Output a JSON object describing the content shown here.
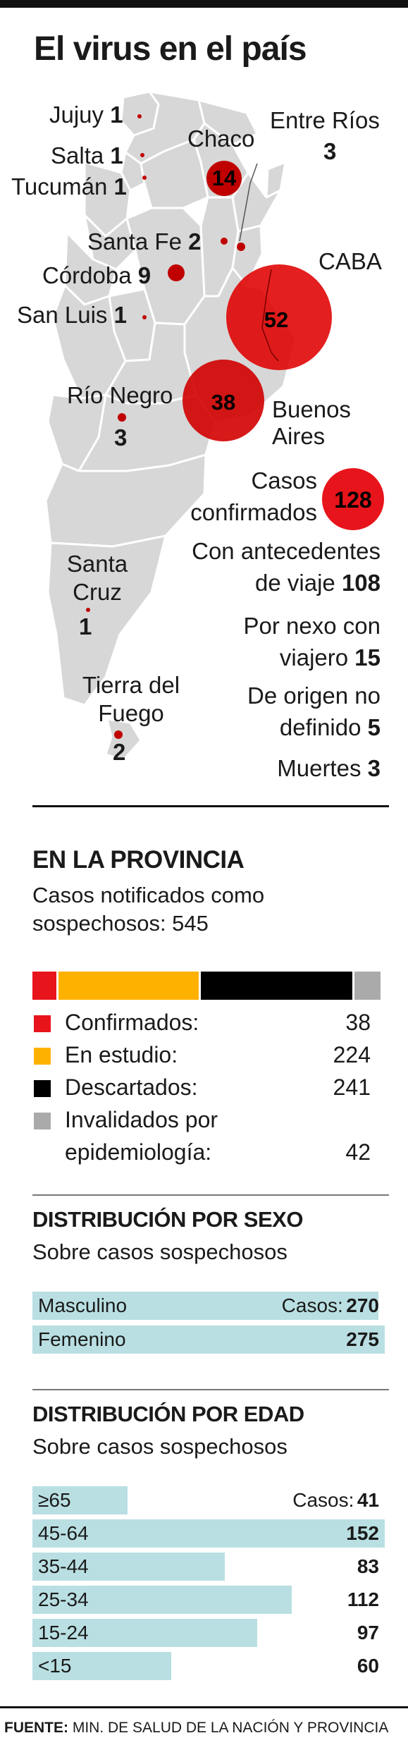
{
  "title": "El virus en el país",
  "map": {
    "provinces": [
      {
        "name": "Jujuy",
        "cases": "1"
      },
      {
        "name": "Salta",
        "cases": "1"
      },
      {
        "name": "Tucumán",
        "cases": "1"
      },
      {
        "name": "Chaco",
        "cases": "14"
      },
      {
        "name": "Entre Ríos",
        "cases": "3"
      },
      {
        "name": "Santa Fe",
        "cases": "2"
      },
      {
        "name": "Córdoba",
        "cases": "9"
      },
      {
        "name": "CABA",
        "cases": "52"
      },
      {
        "name": "San Luis",
        "cases": "1"
      },
      {
        "name": "Río Negro",
        "cases": "3"
      },
      {
        "name": "Buenos Aires",
        "cases": "38"
      },
      {
        "name": "Santa Cruz",
        "cases": "1"
      },
      {
        "name": "Tierra del Fuego",
        "cases": "2"
      }
    ],
    "colors": {
      "land": "#d7d7d7",
      "border": "#ffffff",
      "bubble": "#e00000",
      "bubble_dark": "#b80000",
      "dot": "#b00000"
    }
  },
  "summary": {
    "confirmed_label_1": "Casos",
    "confirmed_label_2": "confirmados",
    "confirmed_value": "128",
    "travel_label_1": "Con antecedentes",
    "travel_label_2": "de viaje",
    "travel_value": "108",
    "contact_label_1": "Por nexo con",
    "contact_label_2": "viajero",
    "contact_value": "15",
    "undefined_label_1": "De origen no",
    "undefined_label_2": "definido",
    "undefined_value": "5",
    "deaths_label": "Muertes",
    "deaths_value": "3"
  },
  "provincia": {
    "heading": "EN LA PROVINCIA",
    "sub_1": "Casos notificados como",
    "sub_2": "sospechosos: 545",
    "legend": [
      {
        "label": "Confirmados:",
        "value": "38",
        "color": "#e8141b"
      },
      {
        "label": "En estudio:",
        "value": "224",
        "color": "#ffb100"
      },
      {
        "label": "Descartados:",
        "value": "241",
        "color": "#000000"
      },
      {
        "label": "Invalidados por",
        "label_2": "epidemiología:",
        "value": "42",
        "color": "#aaaaaa"
      }
    ]
  },
  "sexo": {
    "heading": "DISTRIBUCIÓN POR SEXO",
    "sub": "Sobre casos sospechosos",
    "cases_label": "Casos:",
    "rows": [
      {
        "label": "Masculino",
        "value": "270"
      },
      {
        "label": "Femenino",
        "value": "275"
      }
    ]
  },
  "edad": {
    "heading": "DISTRIBUCIÓN POR EDAD",
    "sub": "Sobre casos sospechosos",
    "cases_label": "Casos:",
    "rows": [
      {
        "label": "≥65",
        "value": "41"
      },
      {
        "label": "45-64",
        "value": "152"
      },
      {
        "label": "35-44",
        "value": "83"
      },
      {
        "label": "25-34",
        "value": "112"
      },
      {
        "label": "15-24",
        "value": "97"
      },
      {
        "label": "<15",
        "value": "60"
      }
    ]
  },
  "footer": {
    "source_label": "FUENTE:",
    "source_text": "MIN. DE SALUD DE LA NACIÓN Y PROVINCIA"
  },
  "chart_data": [
    {
      "type": "bar",
      "title": "EN LA PROVINCIA",
      "categories": [
        "Confirmados",
        "En estudio",
        "Descartados",
        "Invalidados por epidemiología"
      ],
      "values": [
        38,
        224,
        241,
        42
      ],
      "colors": [
        "#e8141b",
        "#ffb100",
        "#000000",
        "#aaaaaa"
      ],
      "stacked": true
    },
    {
      "type": "bar",
      "title": "DISTRIBUCIÓN POR SEXO",
      "categories": [
        "Masculino",
        "Femenino"
      ],
      "values": [
        270,
        275
      ],
      "orientation": "horizontal"
    },
    {
      "type": "bar",
      "title": "DISTRIBUCIÓN POR EDAD",
      "categories": [
        "≥65",
        "45-64",
        "35-44",
        "25-34",
        "15-24",
        "<15"
      ],
      "values": [
        41,
        152,
        83,
        112,
        97,
        60
      ],
      "orientation": "horizontal"
    }
  ]
}
